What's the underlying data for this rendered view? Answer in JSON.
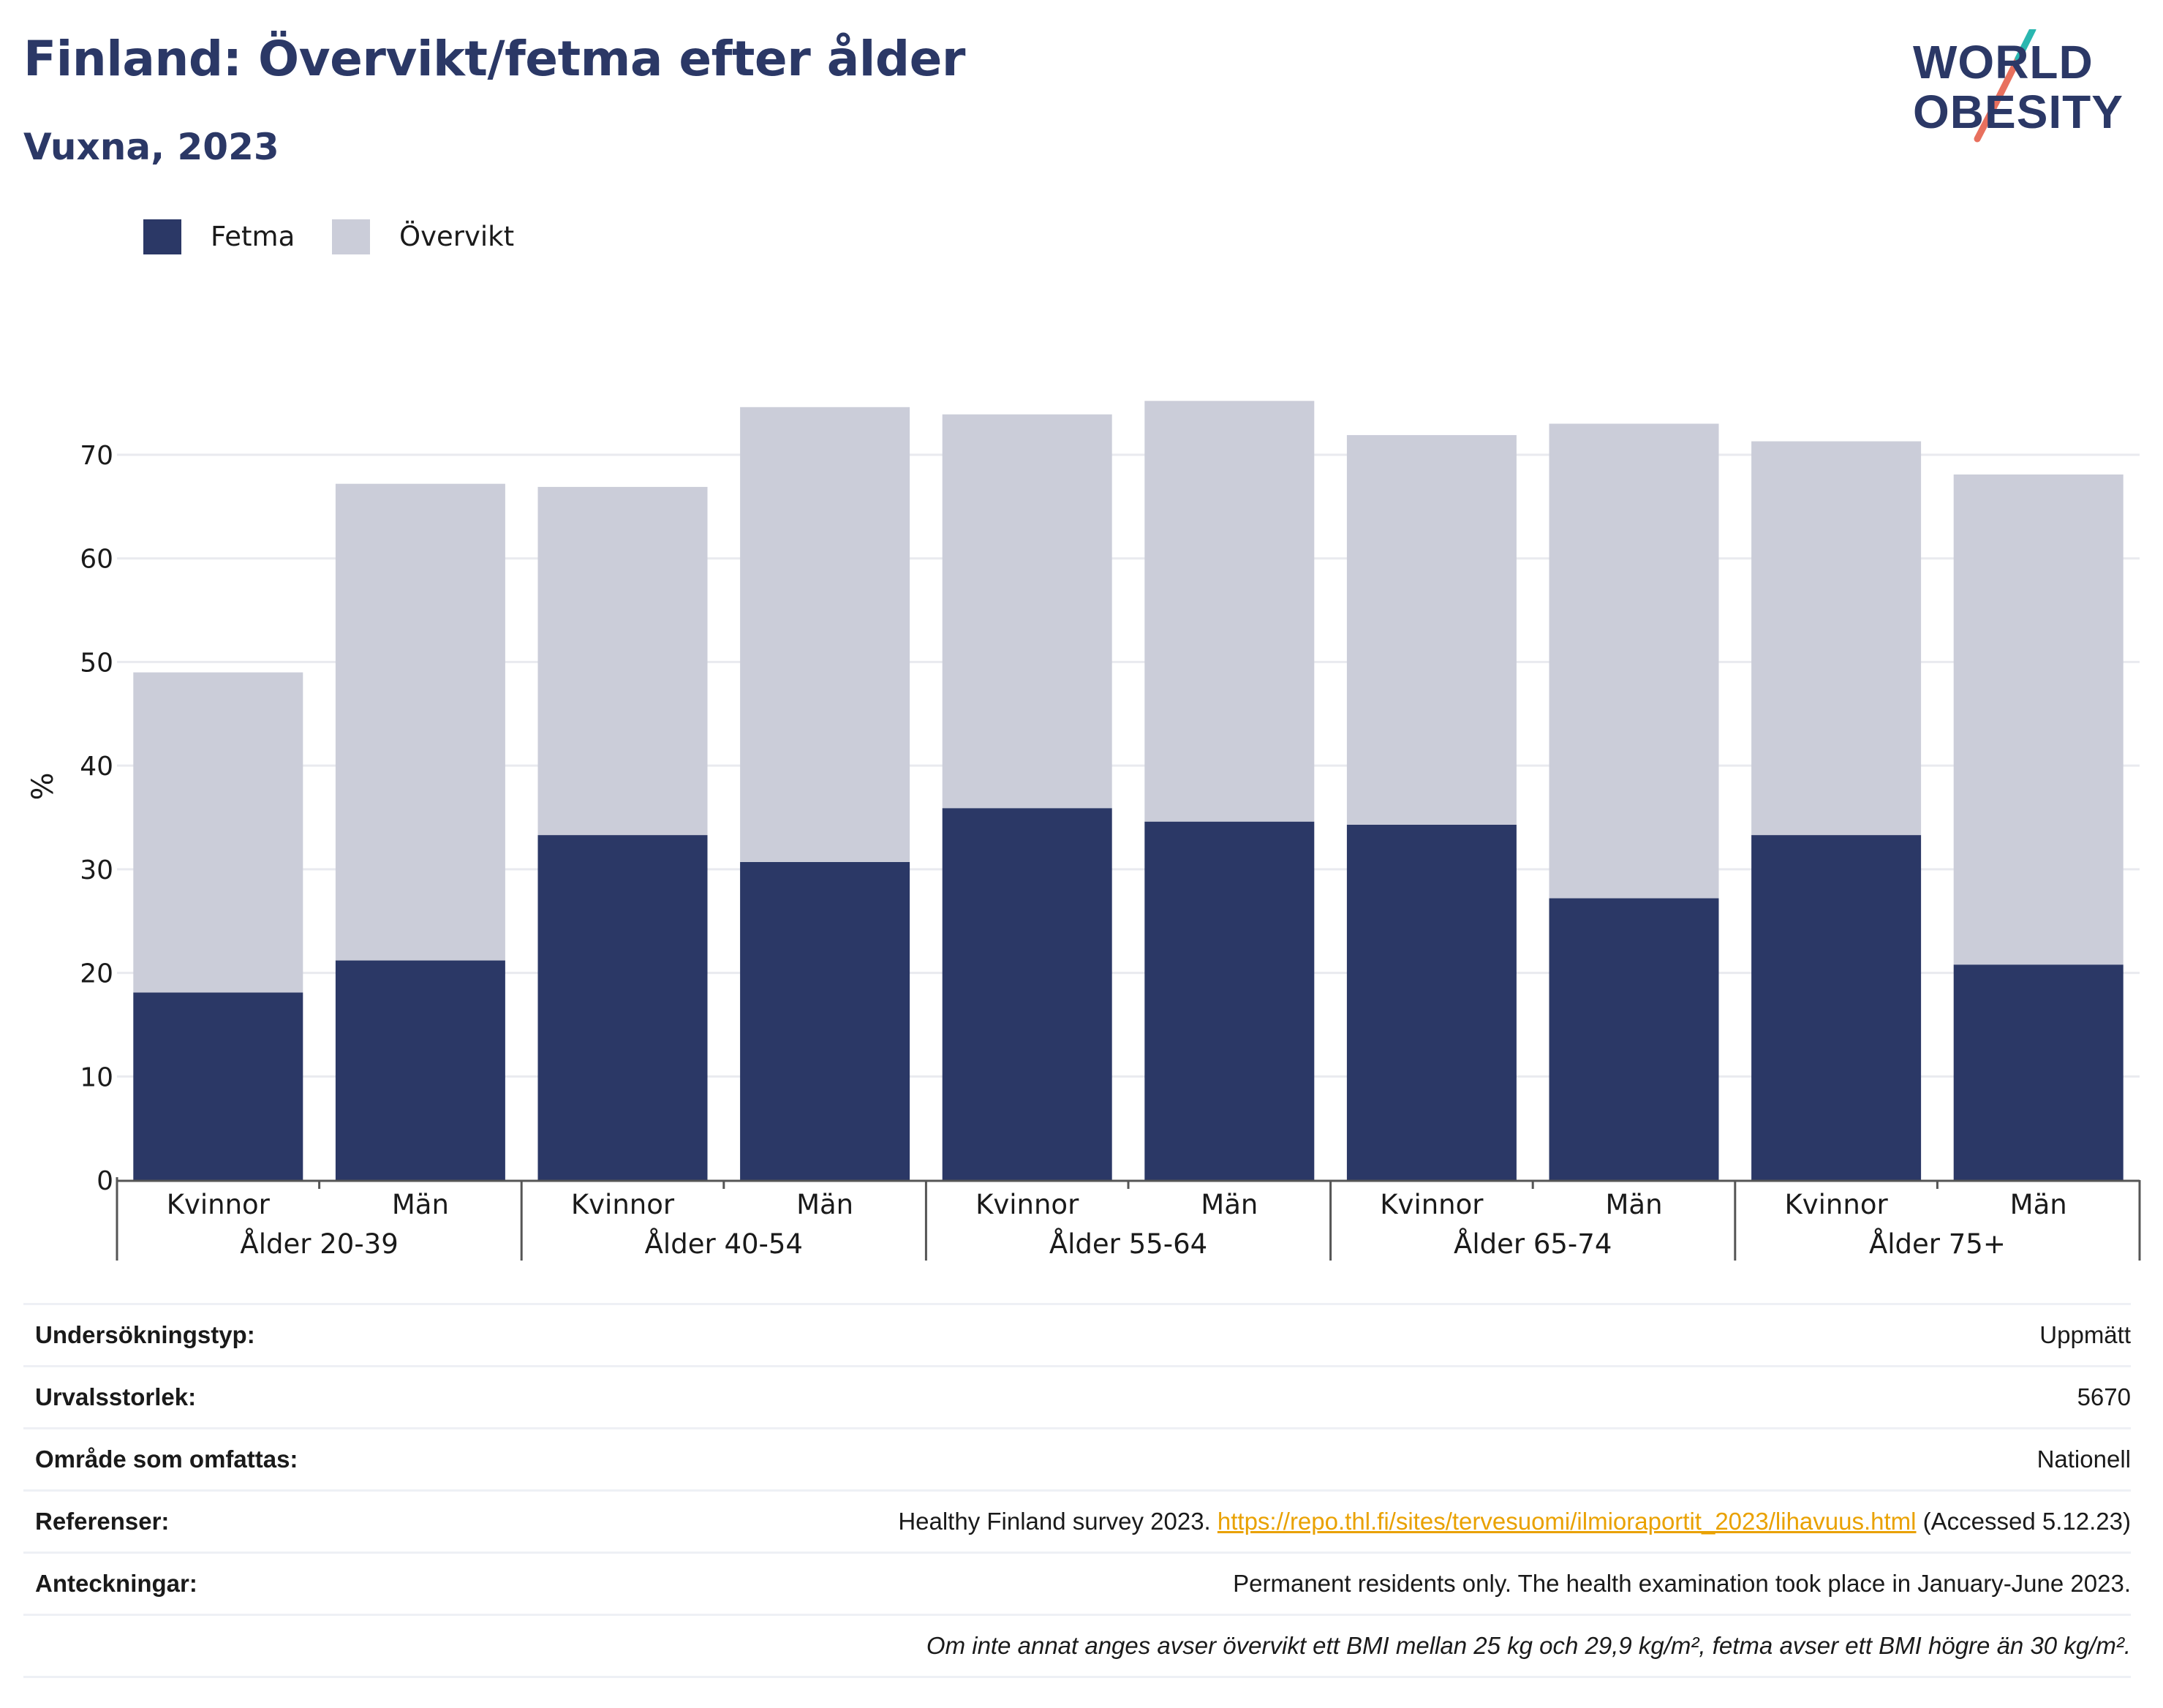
{
  "header": {
    "title": "Finland: Övervikt/fetma efter ålder",
    "subtitle": "Vuxna, 2023"
  },
  "logo": {
    "line1": "WORLD",
    "line2": "OBESITY",
    "colors": {
      "text": "#2b3866",
      "slash_top": "#2ab7b0",
      "slash_bottom": "#e8705e"
    }
  },
  "legend": [
    {
      "label": "Fetma",
      "color": "#2b3866"
    },
    {
      "label": "Övervikt",
      "color": "#cbcdd9"
    }
  ],
  "chart_data": {
    "type": "bar",
    "stacked": true,
    "ylabel": "%",
    "ylim": [
      0,
      77
    ],
    "yticks": [
      0,
      10,
      20,
      30,
      40,
      50,
      60,
      70
    ],
    "grid": true,
    "legend_position": "top-left",
    "groups": [
      "Ålder 20-39",
      "Ålder 40-54",
      "Ålder 55-64",
      "Ålder 65-74",
      "Ålder 75+"
    ],
    "categories": [
      "Kvinnor",
      "Män",
      "Kvinnor",
      "Män",
      "Kvinnor",
      "Män",
      "Kvinnor",
      "Män",
      "Kvinnor",
      "Män"
    ],
    "series": [
      {
        "name": "Fetma",
        "color": "#2b3866",
        "values": [
          18.1,
          21.2,
          33.3,
          30.7,
          35.9,
          34.6,
          34.3,
          27.2,
          33.3,
          20.8
        ]
      },
      {
        "name": "Övervikt",
        "color": "#cbcdd9",
        "values": [
          30.9,
          46.0,
          33.6,
          43.9,
          38.0,
          40.6,
          37.6,
          45.8,
          38.0,
          47.3
        ]
      }
    ]
  },
  "info": {
    "rows": [
      {
        "label": "Undersökningstyp:",
        "value": "Uppmätt"
      },
      {
        "label": "Urvalsstorlek:",
        "value": "5670"
      },
      {
        "label": "Område som omfattas:",
        "value": "Nationell"
      },
      {
        "label": "Referenser:",
        "value_prefix": "Healthy Finland survey 2023. ",
        "link": "https://repo.thl.fi/sites/tervesuomi/ilmioraportit_2023/lihavuus.html",
        "value_suffix": " (Accessed 5.12.23)"
      },
      {
        "label": "Anteckningar:",
        "value": "Permanent residents only. The health examination took place in January-June 2023."
      }
    ],
    "footnote": "Om inte annat anges avser övervikt ett BMI mellan 25 kg och 29,9 kg/m², fetma avser ett BMI högre än 30 kg/m²."
  }
}
